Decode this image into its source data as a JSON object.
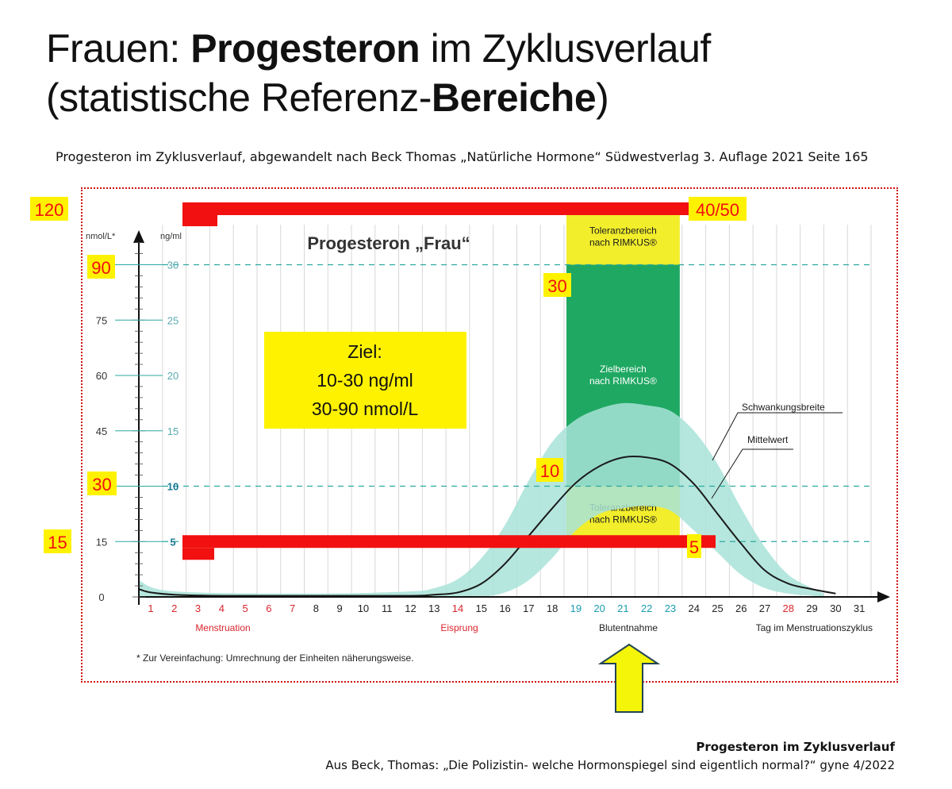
{
  "header": {
    "title_plain_1": "Frauen: ",
    "title_bold_1": "Progesteron",
    "title_plain_2": " im Zyklusverlauf",
    "title_plain_3": "(statistische Referenz-",
    "title_bold_2": "Bereiche",
    "title_plain_4": ")",
    "source": "Progesteron im Zyklusverlauf, abgewandelt nach Beck Thomas „Natürliche Hormone“ Südwestverlag 3. Auflage 2021 Seite 165"
  },
  "footer": {
    "line1": "Progesteron im Zyklusverlauf",
    "line2": "Aus Beck, Thomas: „Die Polizistin- welche Hormonspiegel sind eigentlich normal?“ gyne 4/2022"
  },
  "chart_data": {
    "type": "area",
    "title": "Progesteron „Frau“",
    "y_left_label": "nmol/L*",
    "y_right_label": "ng/ml",
    "y_nmol_ticks": [
      "0",
      "15",
      "30",
      "45",
      "60",
      "75",
      "90"
    ],
    "y_ng_ticks": [
      "5",
      "10",
      "15",
      "20",
      "25",
      "30"
    ],
    "ylim_ng": [
      0,
      35
    ],
    "xlim_day": [
      0.5,
      31.5
    ],
    "x_days": [
      "1",
      "2",
      "3",
      "4",
      "5",
      "6",
      "7",
      "8",
      "9",
      "10",
      "11",
      "12",
      "13",
      "14",
      "15",
      "16",
      "17",
      "18",
      "19",
      "20",
      "21",
      "22",
      "23",
      "24",
      "25",
      "26",
      "27",
      "28",
      "29",
      "30",
      "31"
    ],
    "x_day_colors": {
      "red": [
        1,
        2,
        3,
        4,
        5,
        6,
        7,
        14,
        28
      ],
      "teal": [
        19,
        20,
        21,
        22,
        23
      ]
    },
    "x_phase_labels": {
      "menstruation": "Menstruation",
      "ovulation": "Eisprung",
      "blood_draw": "Blutentnahme",
      "axis": "Tag im Menstruationszyklus"
    },
    "footnote": "* Zur Vereinfachung: Umrechnung der Einheiten näherungsweise.",
    "series": [
      {
        "name": "Mittelwert",
        "x": [
          0.5,
          1,
          2,
          4,
          8,
          12,
          13,
          14,
          15,
          16,
          17,
          18,
          19,
          20,
          21,
          22,
          23,
          24,
          25,
          26,
          27,
          28,
          29,
          30
        ],
        "y": [
          0.7,
          0.4,
          0.2,
          0.1,
          0.1,
          0.1,
          0.2,
          0.4,
          1.2,
          3.0,
          5.5,
          8.0,
          10.3,
          11.8,
          12.6,
          12.6,
          12.0,
          10.2,
          7.5,
          4.8,
          2.4,
          1.2,
          0.7,
          0.3
        ]
      },
      {
        "name": "Schwankungsbreite",
        "x": [
          0.5,
          2,
          8,
          12,
          13,
          14,
          15,
          16,
          17,
          18,
          19,
          20,
          21,
          22,
          23,
          24,
          25,
          26,
          27,
          28,
          29,
          29.5
        ],
        "y_upper": [
          1.5,
          0.5,
          0.3,
          0.5,
          0.8,
          1.6,
          3.5,
          6.5,
          10.5,
          14.0,
          16.0,
          17.0,
          17.5,
          17.3,
          16.8,
          15.0,
          12.0,
          8.0,
          4.5,
          2.0,
          0.8,
          0.3
        ],
        "y_lower": [
          0.0,
          0.0,
          0.0,
          0.0,
          0.0,
          0.0,
          0.0,
          0.4,
          1.5,
          3.5,
          6.0,
          7.5,
          8.0,
          8.2,
          7.8,
          6.0,
          4.0,
          2.0,
          0.8,
          0.3,
          0.1,
          0.0
        ]
      }
    ],
    "bands": [
      {
        "label_1": "Toleranzbereich",
        "label_2": "nach RIMKUS®",
        "x_from": 18.6,
        "x_to": 23.4,
        "y_from": 30,
        "y_to": 35,
        "color": "#f2ee2c"
      },
      {
        "label_1": "Zielbereich",
        "label_2": "nach RIMKUS®",
        "x_from": 18.6,
        "x_to": 23.4,
        "y_from": 10,
        "y_to": 30,
        "color": "#1fa862"
      },
      {
        "label_1": "Toleranzbereich",
        "label_2": "nach RIMKUS®",
        "x_from": 18.6,
        "x_to": 23.4,
        "y_from": 5,
        "y_to": 10,
        "color": "#f2ee2c"
      }
    ],
    "reference_lines_ng": [
      30,
      10,
      5
    ],
    "series_labels": {
      "range": "Schwankungsbreite",
      "mean": "Mittelwert"
    },
    "overlay": {
      "goal_line1": "Ziel:",
      "goal_line2": "10-30 ng/ml",
      "goal_line3": "30-90 nmol/L",
      "top_bar_value_ng": 40,
      "bottom_bar_value_ng": 5,
      "label_120": "120",
      "label_90": "90",
      "label_30_left": "30",
      "label_15": "15",
      "label_30_band": "30",
      "label_10_band": "10",
      "label_40_50": "40/50",
      "label_5": "5"
    },
    "colors": {
      "band_yellow": "#f2ee2c",
      "band_green": "#1fa862",
      "range_fill": "#a8e3d8",
      "mean_line": "#1a1a1a",
      "ref_line": "#2ba9a0",
      "red_bar": "#f21010",
      "label_bg": "#fff200",
      "arrow": "#f5f50a",
      "axis_red": "#d9262d",
      "axis_teal": "#1a9bb0"
    }
  }
}
